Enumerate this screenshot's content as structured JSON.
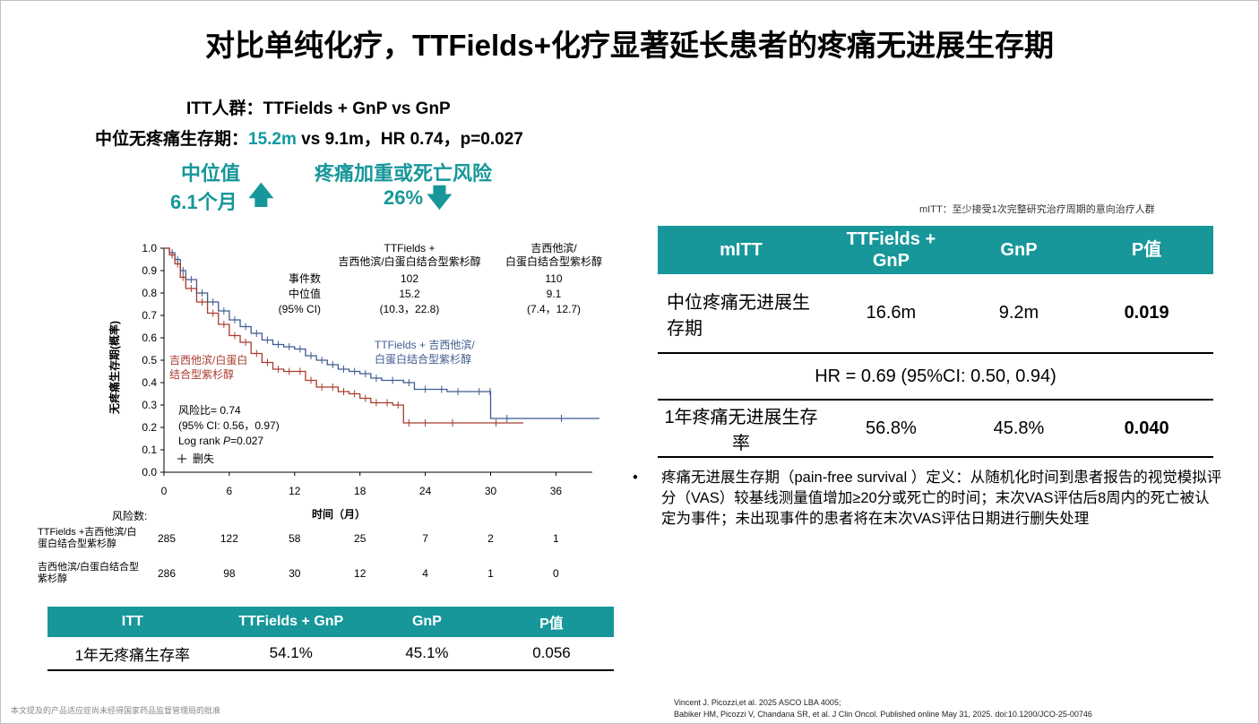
{
  "title": "对比单纯化疗，TTFields+化疗显著延长患者的疼痛无进展生存期",
  "itt_line": "ITT人群：TTFields + GnP vs GnP",
  "median_line": {
    "prefix": "中位无疼痛生存期：",
    "highlight": "15.2m",
    "rest": " vs 9.1m，HR 0.74，p=0.027"
  },
  "callouts": [
    {
      "label": "中位值",
      "value": "6.1个月",
      "direction": "up"
    },
    {
      "label": "疼痛加重或死亡风险",
      "value": "26%",
      "direction": "down"
    }
  ],
  "colors": {
    "teal": "#17979a",
    "ttf": "#3f5b8f",
    "gnp": "#a83a2e"
  },
  "chart_data": {
    "type": "line",
    "xlabel": "时间（月）",
    "ylabel": "无疼痛生存期(概率)",
    "xticks": [
      "0",
      "6",
      "12",
      "18",
      "24",
      "30",
      "36"
    ],
    "yticks": [
      "0.0",
      "0.1",
      "0.2",
      "0.3",
      "0.4",
      "0.5",
      "0.6",
      "0.7",
      "0.8",
      "0.9",
      "1.0"
    ],
    "xlim": [
      0,
      40
    ],
    "ylim": [
      0,
      1
    ],
    "series": [
      {
        "name": "TTFields + 吉西他滨/白蛋白结合型紫杉醇",
        "label_lines": [
          "TTFields + 吉西他滨/",
          "白蛋白结合型紫杉醇"
        ],
        "x": [
          0,
          0.5,
          1,
          1.5,
          2,
          3,
          4,
          5,
          6,
          7,
          8,
          9,
          10,
          11,
          12,
          13,
          14,
          15,
          16,
          17,
          18,
          19,
          20,
          22,
          23,
          25,
          26,
          28,
          29.9,
          30,
          33,
          40
        ],
        "y": [
          1.0,
          0.98,
          0.95,
          0.9,
          0.86,
          0.8,
          0.76,
          0.72,
          0.68,
          0.65,
          0.62,
          0.59,
          0.57,
          0.56,
          0.55,
          0.52,
          0.5,
          0.48,
          0.46,
          0.45,
          0.44,
          0.42,
          0.41,
          0.4,
          0.37,
          0.37,
          0.36,
          0.36,
          0.36,
          0.24,
          0.24,
          0.24
        ]
      },
      {
        "name": "吉西他滨/白蛋白结合型紫杉醇",
        "label_lines": [
          "吉西他滨/白蛋白",
          "结合型紫杉醇"
        ],
        "x": [
          0,
          0.5,
          1,
          1.5,
          2,
          3,
          4,
          5,
          6,
          7,
          8,
          9,
          10,
          11,
          12,
          13,
          14,
          15,
          16,
          17,
          18,
          19,
          20,
          21,
          22,
          23,
          25,
          28,
          33
        ],
        "y": [
          1.0,
          0.97,
          0.93,
          0.87,
          0.82,
          0.76,
          0.71,
          0.66,
          0.61,
          0.58,
          0.53,
          0.49,
          0.46,
          0.45,
          0.45,
          0.41,
          0.38,
          0.38,
          0.36,
          0.35,
          0.33,
          0.31,
          0.31,
          0.3,
          0.22,
          0.22,
          0.22,
          0.22,
          0.22
        ]
      }
    ],
    "stats_table": {
      "row_labels": [
        "事件数",
        "中位值",
        "(95% CI)"
      ],
      "columns": [
        {
          "header_lines": [
            "TTFields +",
            "吉西他滨/白蛋白结合型紫杉醇"
          ],
          "values": [
            "102",
            "15.2",
            "(10.3，22.8)"
          ]
        },
        {
          "header_lines": [
            "吉西他滨/",
            "白蛋白结合型紫杉醇"
          ],
          "values": [
            "110",
            "9.1",
            "(7.4，12.7)"
          ]
        }
      ]
    },
    "hr_box": {
      "line1": "风险比= 0.74",
      "line2": "(95% CI: 0.56，0.97)",
      "line3_prefix": "Log rank ",
      "line3_italic": "P",
      "line3_suffix": "=0.027",
      "censor_label": "删失"
    },
    "risk_table": {
      "title": "风险数:",
      "rows": [
        {
          "label_lines": [
            "TTFields +吉西他滨/白",
            "蛋白结合型紫杉醇"
          ],
          "values": [
            "285",
            "122",
            "58",
            "25",
            "7",
            "2",
            "1"
          ]
        },
        {
          "label_lines": [
            "吉西他滨/白蛋白结合型",
            "紫杉醇"
          ],
          "values": [
            "286",
            "98",
            "30",
            "12",
            "4",
            "1",
            "0"
          ]
        }
      ]
    }
  },
  "right_note": "mITT：至少接受1次完整研究治疗周期的意向治疗人群",
  "right_table": {
    "headers": [
      "mITT",
      "TTFields +\nGnP",
      "GnP",
      "P值"
    ],
    "row1": [
      "中位疼痛无进展生存期",
      "16.6m",
      "9.2m",
      "0.019"
    ],
    "hr": "HR = 0.69 (95%CI: 0.50, 0.94)",
    "row2": [
      "1年疼痛无进展生存率",
      "56.8%",
      "45.8%",
      "0.040"
    ]
  },
  "definition": {
    "bullet": "•",
    "text": "疼痛无进展生存期（pain-free survival ）定义：从随机化时间到患者报告的视觉模拟评分（VAS）较基线测量值增加≥20分或死亡的时间；末次VAS评估后8周内的死亡被认定为事件；未出现事件的患者将在末次VAS评估日期进行删失处理"
  },
  "bottom_table": {
    "headers": [
      "ITT",
      "TTFields + GnP",
      "GnP",
      "P值"
    ],
    "row": [
      "1年无疼痛生存率",
      "54.1%",
      "45.1%",
      "0.056"
    ]
  },
  "footnotes": [
    "Vincent J. Picozzi,et al. 2025 ASCO LBA 4005;",
    "Babiker HM, Picozzi V, Chandana SR, et al. J Clin Oncol. Published online May 31, 2025. doi:10.1200/JCO-25-00746"
  ],
  "disclaimer": "本文提及的产品适应症尚未经得国家药品监督管理局的批准"
}
